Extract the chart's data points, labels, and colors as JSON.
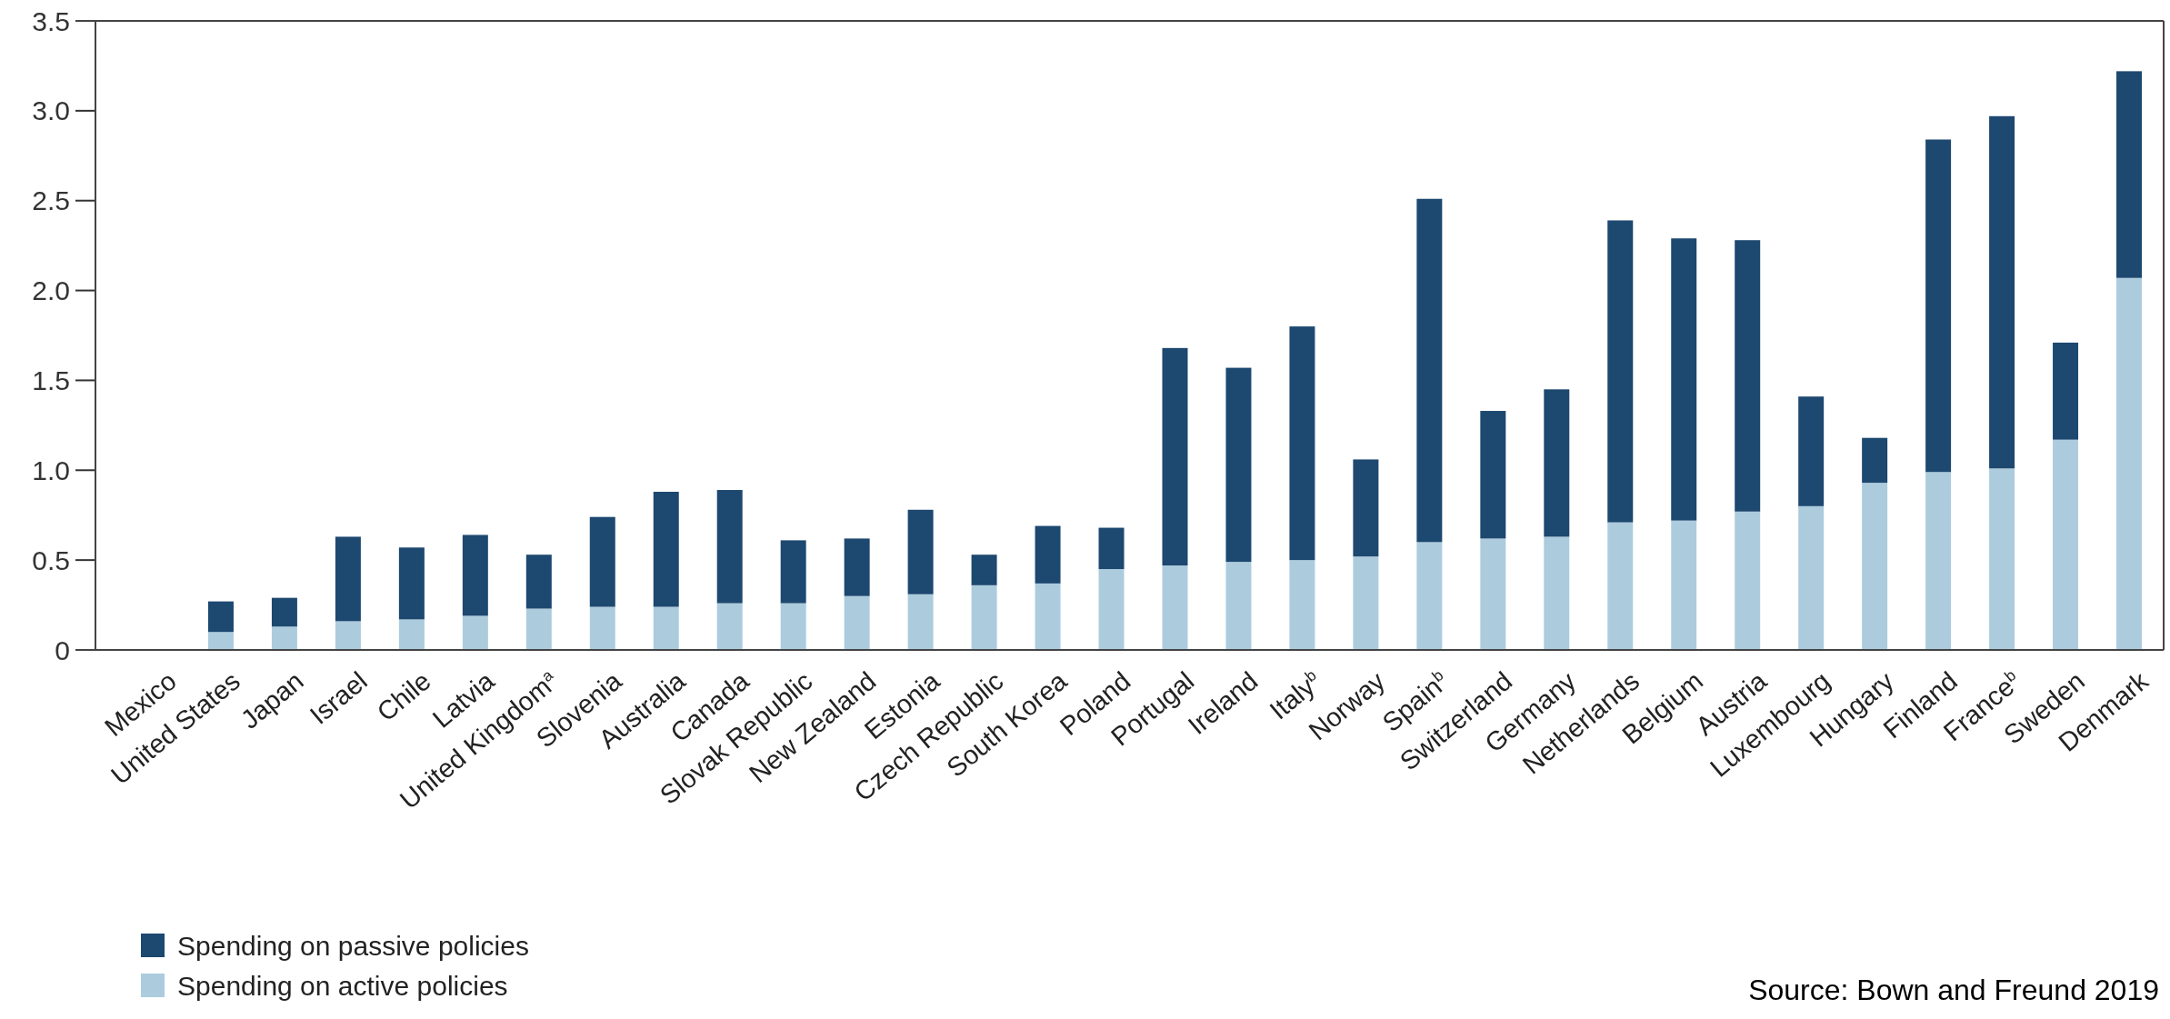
{
  "chart_data": {
    "type": "bar",
    "stacked": true,
    "categories": [
      "Mexico",
      "United States",
      "Japan",
      "Israel",
      "Chile",
      "Latvia",
      "United Kingdom$^{a}$",
      "Slovenia",
      "Australia",
      "Canada",
      "Slovak Republic",
      "New Zealand",
      "Estonia",
      "Czech Republic",
      "South Korea",
      "Poland",
      "Portugal",
      "Ireland",
      "Italy$^{b}$",
      "Norway",
      "Spain$^{b}$",
      "Switzerland",
      "Germany",
      "Netherlands",
      "Belgium",
      "Austria",
      "Luxembourg",
      "Hungary",
      "Finland",
      "France$^{b}$",
      "Sweden",
      "Denmark"
    ],
    "series": [
      {
        "name": "Spending on active policies",
        "color": "#acccde",
        "values": [
          0,
          0.1,
          0.13,
          0.16,
          0.17,
          0.19,
          0.23,
          0.24,
          0.24,
          0.26,
          0.26,
          0.3,
          0.31,
          0.36,
          0.37,
          0.45,
          0.47,
          0.49,
          0.5,
          0.52,
          0.6,
          0.62,
          0.63,
          0.71,
          0.72,
          0.77,
          0.8,
          0.93,
          0.99,
          1.01,
          1.17,
          2.07
        ]
      },
      {
        "name": "Spending on passive policies",
        "color": "#1d4870",
        "values": [
          0,
          0.17,
          0.16,
          0.47,
          0.4,
          0.45,
          0.3,
          0.5,
          0.64,
          0.63,
          0.35,
          0.32,
          0.47,
          0.17,
          0.32,
          0.23,
          1.21,
          1.08,
          1.3,
          0.54,
          1.91,
          0.71,
          0.82,
          1.68,
          1.57,
          1.51,
          0.61,
          0.25,
          1.85,
          1.96,
          0.54,
          1.15
        ]
      }
    ],
    "ylim": [
      0,
      3.5
    ],
    "yticks": [
      {
        "value": 0,
        "label": "0"
      },
      {
        "value": 0.5,
        "label": "0.5"
      },
      {
        "value": 1,
        "label": "1.0"
      },
      {
        "value": 1.5,
        "label": "1.5"
      },
      {
        "value": 2,
        "label": "2.0"
      },
      {
        "value": 2.5,
        "label": "2.5"
      },
      {
        "value": 3,
        "label": "3.0"
      },
      3.5
    ],
    "legend": "bottom left",
    "annotations": [
      "Source: Bown and Freund 2019"
    ]
  }
}
